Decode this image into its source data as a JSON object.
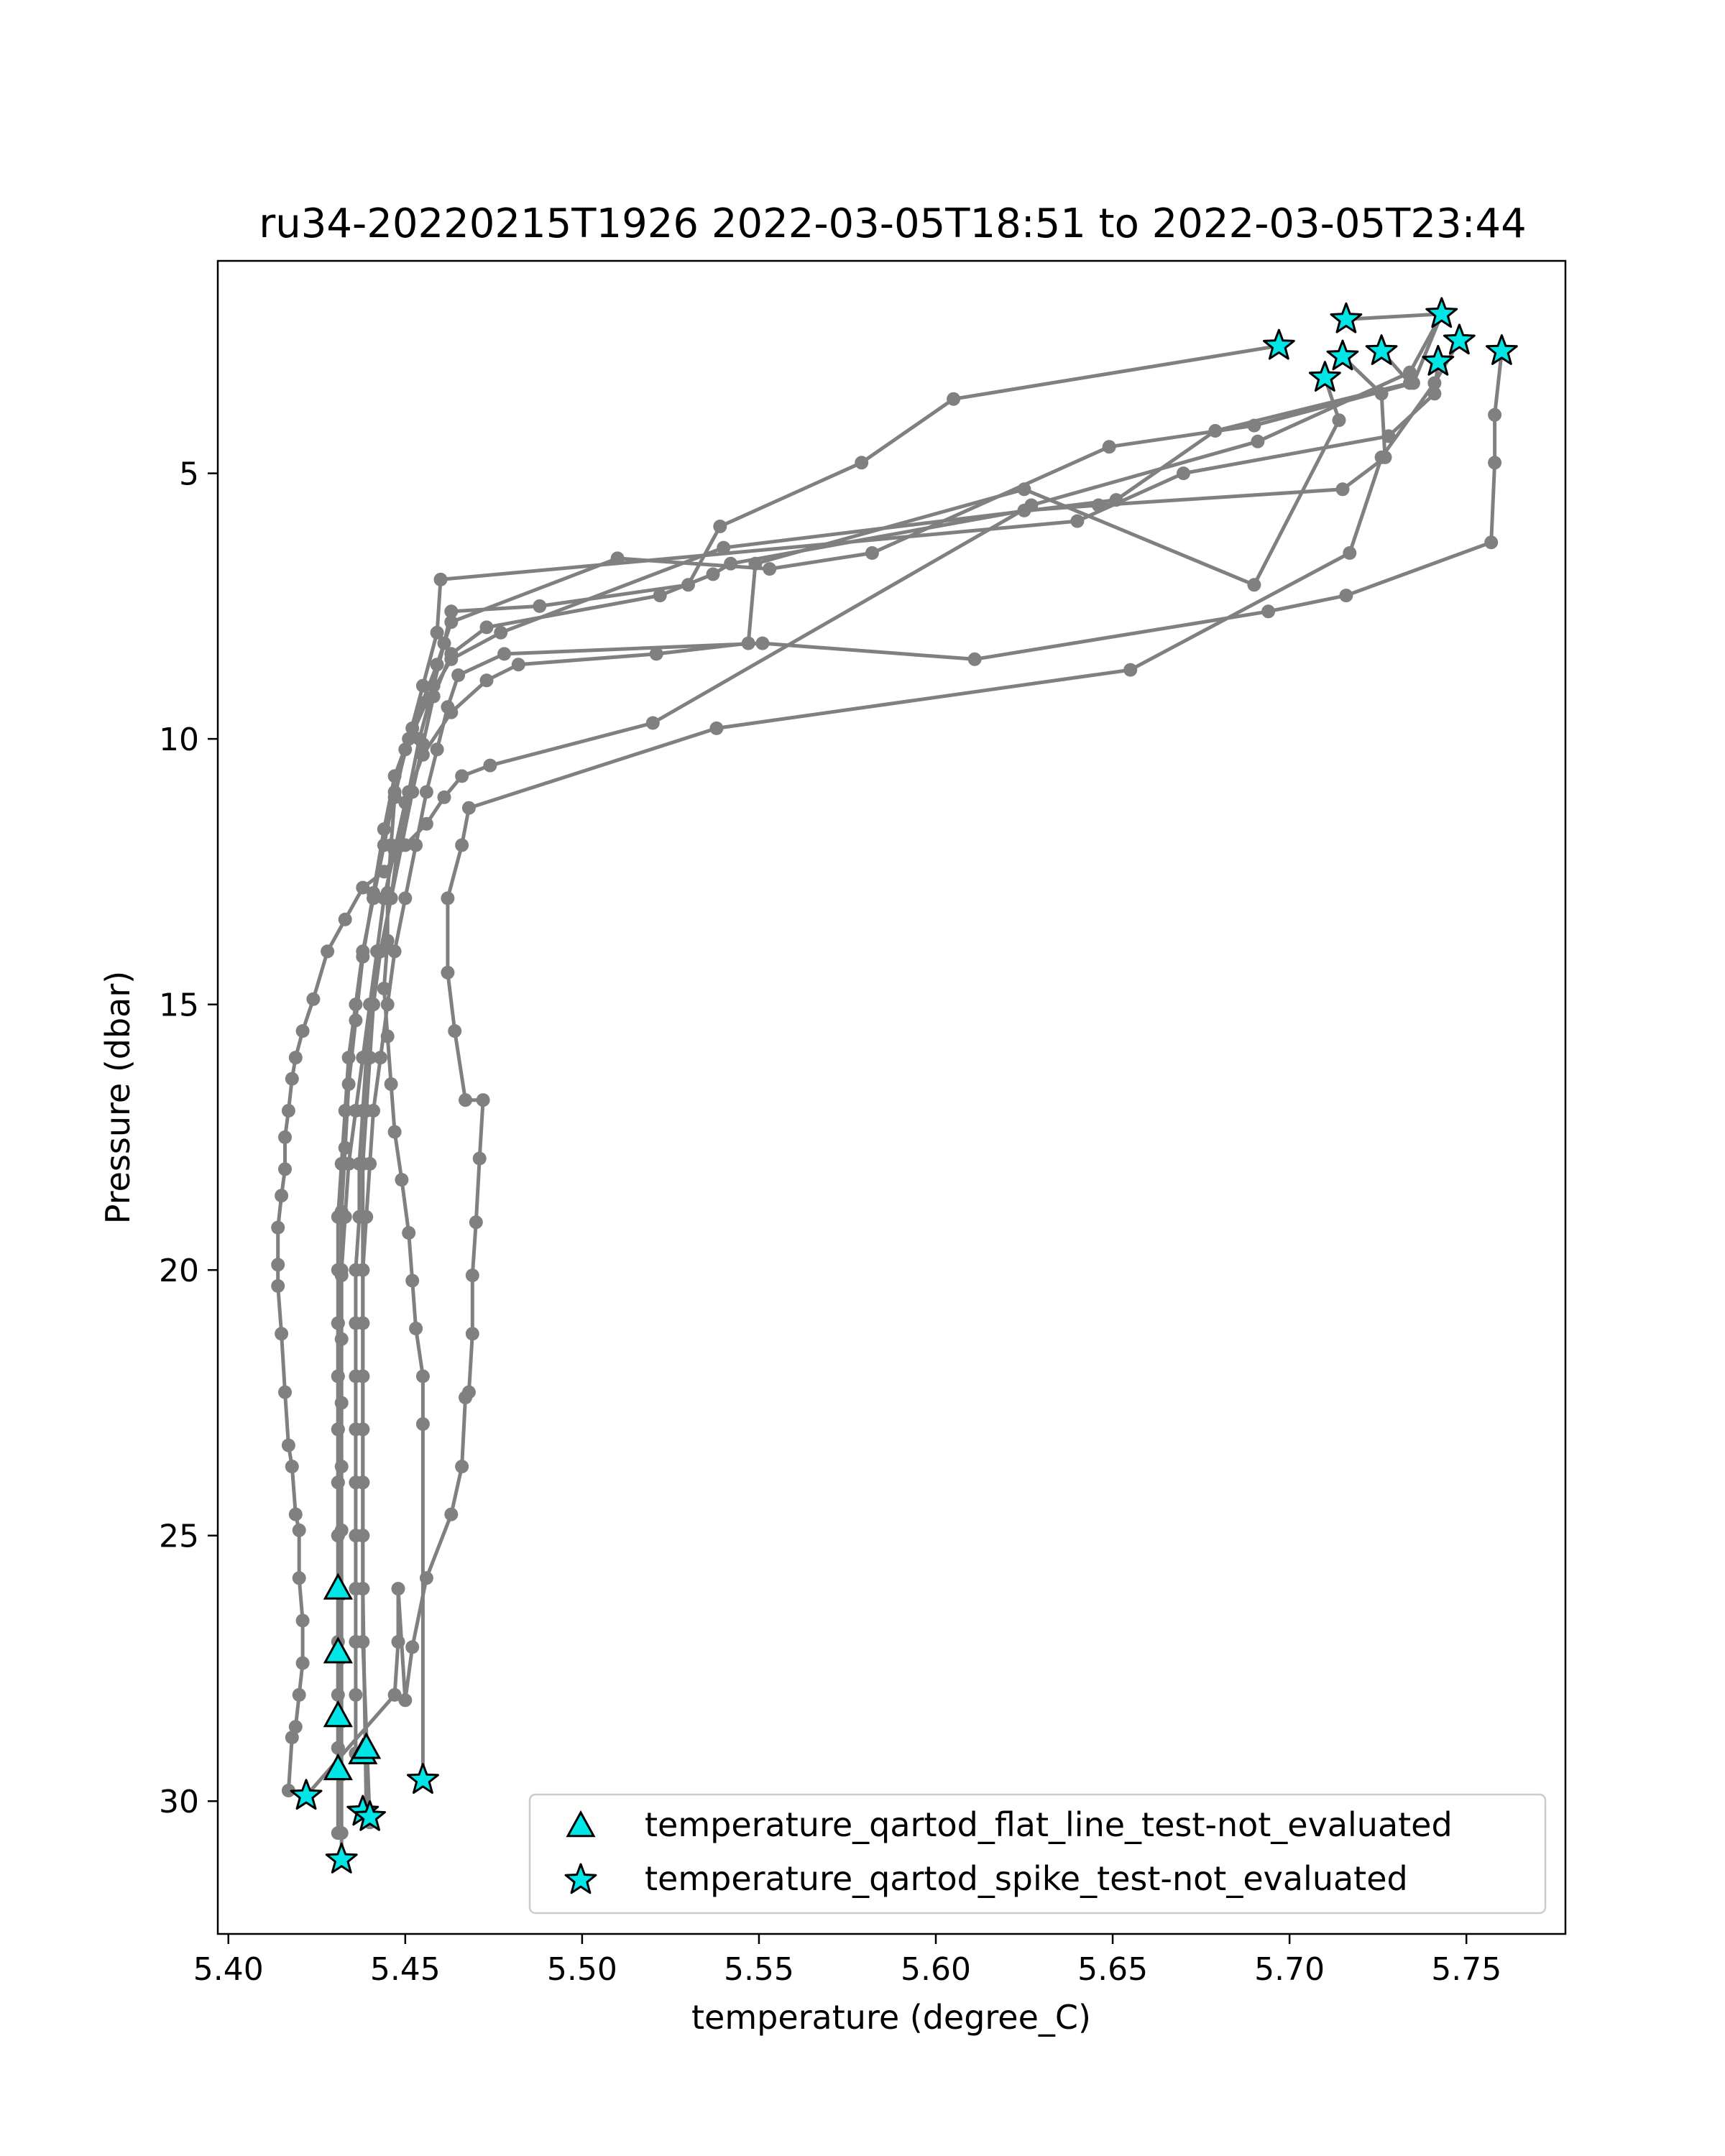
{
  "chart_data": {
    "type": "line",
    "title": "ru34-20220215T1926 2022-03-05T18:51 to 2022-03-05T23:44",
    "xlabel": "temperature (degree_C)",
    "ylabel": "Pressure (dbar)",
    "xlim": [
      5.397,
      5.778
    ],
    "ylim": [
      32.5,
      1.0
    ],
    "y_inverted": true,
    "xticks": [
      "5.40",
      "5.45",
      "5.50",
      "5.55",
      "5.60",
      "5.65",
      "5.70",
      "5.75"
    ],
    "xtick_values": [
      5.4,
      5.45,
      5.5,
      5.55,
      5.6,
      5.65,
      5.7,
      5.75
    ],
    "yticks": [
      "5",
      "10",
      "15",
      "20",
      "25",
      "30"
    ],
    "ytick_values": [
      5,
      10,
      15,
      20,
      25,
      30
    ],
    "grid": false,
    "legend_position": "lower-right",
    "colors": {
      "profile_line": "#808080",
      "marker_fill": "#00e5e5",
      "marker_edge": "#000000"
    },
    "profiles": [
      {
        "x": [
          5.697,
          5.605,
          5.579,
          5.539,
          5.53,
          5.488,
          5.463,
          5.461,
          5.458,
          5.454,
          5.451,
          5.448,
          5.446,
          5.443,
          5.44,
          5.438,
          5.436,
          5.434,
          5.433,
          5.432,
          5.431,
          5.431,
          5.431,
          5.431,
          5.431,
          5.431,
          5.431,
          5.431,
          5.431,
          5.431
        ],
        "y": [
          2.6,
          3.6,
          4.8,
          6.0,
          7.1,
          7.5,
          7.6,
          8.2,
          9.0,
          10.0,
          11.0,
          12.0,
          13.0,
          14.0,
          15.0,
          16.0,
          17.0,
          18.0,
          19.0,
          20.0,
          21.0,
          22.0,
          23.0,
          24.0,
          25.0,
          26.0,
          27.0,
          28.0,
          29.0,
          30.6
        ]
      },
      {
        "x": [
          5.716,
          5.743,
          5.735,
          5.69,
          5.649,
          5.582,
          5.553,
          5.51,
          5.463,
          5.459,
          5.452,
          5.447,
          5.444,
          5.441,
          5.438,
          5.436,
          5.434,
          5.433,
          5.432,
          5.432,
          5.432,
          5.432,
          5.432,
          5.432,
          5.432,
          5.432,
          5.432,
          5.432,
          5.432,
          5.432
        ],
        "y": [
          2.1,
          2.0,
          3.3,
          4.1,
          4.5,
          6.5,
          6.8,
          6.6,
          7.8,
          8.6,
          9.8,
          10.7,
          11.7,
          12.9,
          14.1,
          15.3,
          16.5,
          17.7,
          18.9,
          20.1,
          21.3,
          22.5,
          23.7,
          24.9,
          26.1,
          27.3,
          28.5,
          29.5,
          30.6,
          31.1
        ]
      },
      {
        "x": [
          5.726,
          5.734,
          5.679,
          5.651,
          5.54,
          5.477,
          5.463,
          5.456,
          5.45,
          5.447,
          5.446,
          5.445,
          5.445,
          5.444,
          5.445,
          5.446,
          5.447,
          5.449,
          5.451,
          5.452,
          5.453,
          5.455,
          5.455,
          5.455
        ],
        "y": [
          2.7,
          3.3,
          4.2,
          5.5,
          6.4,
          8.0,
          8.5,
          9.3,
          10.2,
          11.1,
          12.0,
          12.9,
          13.8,
          14.7,
          15.6,
          16.5,
          17.4,
          18.3,
          19.3,
          20.2,
          21.1,
          22.0,
          22.9,
          29.6
        ]
      },
      {
        "x": [
          5.715,
          5.726,
          5.727,
          5.715,
          5.646,
          5.625,
          5.542,
          5.537,
          5.522,
          5.473,
          5.463,
          5.458,
          5.455,
          5.452,
          5.449,
          5.446,
          5.443,
          5.441,
          5.44,
          5.439,
          5.438,
          5.438,
          5.438,
          5.438,
          5.438,
          5.438,
          5.438,
          5.438,
          5.438,
          5.439
        ],
        "y": [
          2.8,
          3.5,
          4.7,
          5.3,
          5.6,
          5.7,
          6.7,
          6.9,
          7.3,
          7.9,
          8.4,
          9.2,
          10.1,
          11.0,
          12.0,
          13.0,
          14.0,
          15.0,
          16.0,
          17.0,
          18.0,
          19.0,
          20.0,
          21.0,
          22.0,
          23.0,
          24.0,
          25.0,
          26.0,
          30.2
        ]
      },
      {
        "x": [
          5.71,
          5.714,
          5.69,
          5.625,
          5.549,
          5.547,
          5.521,
          5.482,
          5.473,
          5.463,
          5.455,
          5.45,
          5.447,
          5.444,
          5.442,
          5.44,
          5.439,
          5.438,
          5.437,
          5.437,
          5.436,
          5.436,
          5.436,
          5.436,
          5.436,
          5.436,
          5.436,
          5.436,
          5.436,
          5.436
        ],
        "y": [
          3.2,
          4.0,
          7.1,
          5.3,
          6.7,
          8.2,
          8.4,
          8.6,
          8.9,
          9.5,
          10.3,
          11.2,
          12.1,
          13.0,
          14.0,
          15.0,
          16.0,
          17.0,
          18.0,
          19.0,
          20.0,
          21.0,
          22.0,
          23.0,
          24.0,
          25.0,
          26.0,
          27.0,
          28.0,
          29.1
        ]
      },
      {
        "x": [
          5.742,
          5.741,
          5.728,
          5.67,
          5.64,
          5.46,
          5.459,
          5.455,
          5.451,
          5.447,
          5.444,
          5.441,
          5.438,
          5.436,
          5.434,
          5.433,
          5.432,
          5.431,
          5.431,
          5.431,
          5.431,
          5.431,
          5.431,
          5.431,
          5.431,
          5.431,
          5.431,
          5.431,
          5.431
        ],
        "y": [
          2.9,
          3.5,
          4.3,
          5.0,
          5.9,
          7.0,
          8.0,
          9.0,
          10.0,
          11.0,
          12.0,
          13.0,
          14.0,
          15.0,
          16.0,
          17.0,
          18.0,
          19.0,
          20.0,
          21.0,
          22.0,
          23.0,
          24.0,
          25.0,
          26.0,
          27.2,
          28.4,
          29.0,
          29.4
        ]
      },
      {
        "x": [
          5.76,
          5.758,
          5.758,
          5.757,
          5.716,
          5.694,
          5.611,
          5.551,
          5.478,
          5.465,
          5.462,
          5.459,
          5.456,
          5.453,
          5.45,
          5.447,
          5.445,
          5.443,
          5.441,
          5.44,
          5.439,
          5.438,
          5.438,
          5.438,
          5.438,
          5.438,
          5.438,
          5.438,
          5.438,
          5.44
        ],
        "y": [
          2.7,
          3.9,
          4.8,
          6.3,
          7.3,
          7.6,
          8.5,
          8.2,
          8.4,
          8.8,
          9.4,
          10.2,
          11.0,
          12.0,
          13.0,
          14.0,
          15.0,
          16.0,
          17.0,
          18.0,
          19.0,
          20.0,
          21.0,
          22.0,
          23.0,
          24.0,
          25.0,
          26.0,
          27.0,
          30.4
        ]
      },
      {
        "x": [
          5.748,
          5.741,
          5.726,
          5.717,
          5.655,
          5.538,
          5.468,
          5.466,
          5.462,
          5.462,
          5.464,
          5.467,
          5.472,
          5.471,
          5.47,
          5.469,
          5.469,
          5.468,
          5.467,
          5.466,
          5.463,
          5.456,
          5.452,
          5.45,
          5.448,
          5.448,
          5.447,
          5.422
        ],
        "y": [
          2.5,
          3.3,
          4.7,
          6.5,
          8.7,
          9.8,
          11.3,
          12.0,
          13.0,
          14.4,
          15.5,
          16.8,
          16.8,
          17.9,
          19.1,
          20.1,
          21.2,
          22.3,
          22.4,
          23.7,
          24.6,
          25.8,
          27.1,
          28.1,
          26.0,
          27.0,
          28.0,
          29.9
        ]
      },
      {
        "x": [
          5.743,
          5.734,
          5.691,
          5.627,
          5.52,
          5.474,
          5.466,
          5.461,
          5.456,
          5.45,
          5.444,
          5.438,
          5.433,
          5.428,
          5.424,
          5.421,
          5.419,
          5.418,
          5.417,
          5.416,
          5.416,
          5.415,
          5.414,
          5.414,
          5.414,
          5.415,
          5.416,
          5.417,
          5.418,
          5.419,
          5.42,
          5.42,
          5.421,
          5.421,
          5.42,
          5.419,
          5.418,
          5.417
        ],
        "y": [
          2.0,
          3.1,
          4.4,
          5.6,
          9.7,
          10.5,
          10.7,
          11.1,
          11.6,
          12.0,
          12.5,
          12.8,
          13.4,
          14.0,
          14.9,
          15.5,
          16.0,
          16.4,
          17.0,
          17.5,
          18.1,
          18.6,
          19.2,
          19.9,
          20.3,
          21.2,
          22.3,
          23.3,
          23.7,
          24.6,
          24.9,
          25.8,
          26.6,
          27.4,
          28.0,
          28.6,
          28.8,
          29.8
        ]
      }
    ],
    "flat_line_flags": {
      "name": "temperature_qartod_flat_line_test-not_evaluated",
      "x": [
        5.431,
        5.431,
        5.431,
        5.431,
        5.438,
        5.439
      ],
      "y": [
        26.0,
        27.2,
        28.4,
        29.4,
        29.1,
        29.0
      ]
    },
    "spike_flags": {
      "name": "temperature_qartod_spike_test-not_evaluated",
      "x": [
        5.697,
        5.716,
        5.743,
        5.748,
        5.76,
        5.715,
        5.726,
        5.742,
        5.71,
        5.455,
        5.422,
        5.438,
        5.44,
        5.432
      ],
      "y": [
        2.6,
        2.1,
        2.0,
        2.5,
        2.7,
        2.8,
        2.7,
        2.9,
        3.2,
        29.6,
        29.9,
        30.2,
        30.3,
        31.1
      ]
    }
  }
}
